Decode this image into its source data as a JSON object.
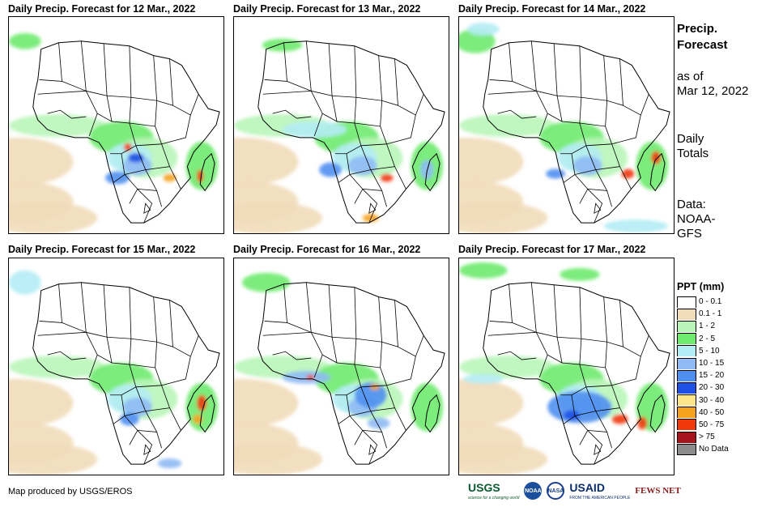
{
  "panels": [
    {
      "title": "Daily Precip. Forecast for 12 Mar., 2022",
      "day": "12 Mar., 2022"
    },
    {
      "title": "Daily Precip. Forecast for 13 Mar., 2022",
      "day": "13 Mar., 2022"
    },
    {
      "title": "Daily Precip. Forecast for 14 Mar., 2022",
      "day": "14 Mar., 2022"
    },
    {
      "title": "Daily Precip. Forecast for 15 Mar., 2022",
      "day": "15 Mar., 2022"
    },
    {
      "title": "Daily Precip. Forecast for 16 Mar., 2022",
      "day": "16 Mar., 2022"
    },
    {
      "title": "Daily Precip. Forecast for 17 Mar., 2022",
      "day": "17 Mar., 2022"
    }
  ],
  "sidebar": {
    "title_line1": "Precip.",
    "title_line2": "Forecast",
    "asof_line1": "as of",
    "asof_line2": "Mar 12, 2022",
    "totals_line1": "Daily",
    "totals_line2": "Totals",
    "data_line1": "Data:",
    "data_line2": "NOAA-",
    "data_line3": "GFS"
  },
  "legend": {
    "title": "PPT (mm)",
    "items": [
      {
        "label": "0 - 0.1",
        "color": "#ffffff"
      },
      {
        "label": "0.1 - 1",
        "color": "#f1dcb9"
      },
      {
        "label": "1 - 2",
        "color": "#b9f5b9"
      },
      {
        "label": "2 - 5",
        "color": "#6eea6e"
      },
      {
        "label": "5 - 10",
        "color": "#b4ecf5"
      },
      {
        "label": "10 - 15",
        "color": "#8fbaf4"
      },
      {
        "label": "15 - 20",
        "color": "#4f8fef"
      },
      {
        "label": "20 - 30",
        "color": "#1e50e6"
      },
      {
        "label": "30 - 40",
        "color": "#ffe68a"
      },
      {
        "label": "40 - 50",
        "color": "#f5a21e"
      },
      {
        "label": "50 - 75",
        "color": "#f0380a"
      },
      {
        "label": "> 75",
        "color": "#a8141e"
      },
      {
        "label": "No Data",
        "color": "#8c8c8c"
      }
    ]
  },
  "credit": "Map produced by USGS/EROS",
  "logos": {
    "usgs": "USGS",
    "usgs_tag": "science for a changing world",
    "noaa": "NOAA",
    "nasa": "NASA",
    "usaid": "USAID",
    "usaid_tag": "FROM THE AMERICAN PEOPLE",
    "fews": "FEWS NET"
  }
}
